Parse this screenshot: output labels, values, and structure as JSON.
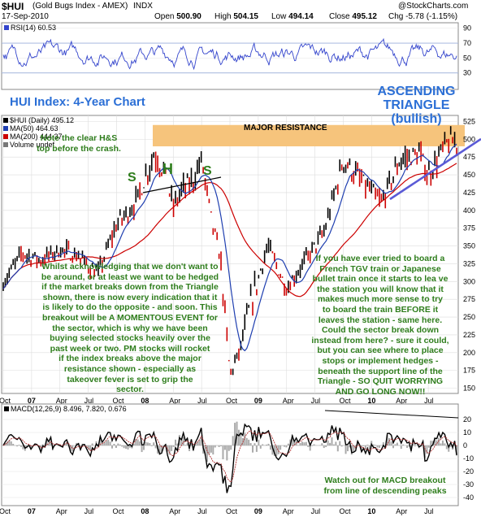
{
  "header": {
    "symbol": "$HUI",
    "symbol_desc": "(Gold Bugs Index - AMEX)",
    "exchange": "INDX",
    "source": "@StockCharts.com",
    "date": "17-Sep-2010",
    "open_label": "Open",
    "open": "500.90",
    "high_label": "High",
    "high": "504.15",
    "low_label": "Low",
    "low": "494.14",
    "close_label": "Close",
    "close": "495.12",
    "chg_label": "Chg",
    "chg": "-5.78 (-1.15%)"
  },
  "rsi_legend": "RSI(14) 60.53",
  "price_legend": {
    "main": "$HUI (Daily) 495.12",
    "ma50": "MA(50) 464.63",
    "ma200": "MA(200) 444.37",
    "volume": "Volume undef"
  },
  "macd_legend": "MACD(12,26,9) 8.496, 7.820, 0.676",
  "title": "HUI Index: 4-Year Chart",
  "annotations": {
    "ascending": "ASCENDING",
    "triangle": "TRIANGLE",
    "bullish": "(bullish)",
    "major_resistance": "MAJOR RESISTANCE",
    "hs_note_1": "Note the clear H&S",
    "hs_note_2": "top before the crash.",
    "hs_s1": "S",
    "hs_h": "H",
    "hs_s2": "S",
    "left_text": [
      "Whilst acknowledging that we don't want to",
      "be around, or at least we want to be hedged",
      "if the market breaks down from the Triangle",
      "shown, there is now every indication that it",
      "is likely to do the opposite - and soon. This",
      "breakout will be A MOMENTOUS EVENT for",
      "the sector, which is why we have been",
      "buying selected stocks heavily over the",
      "past week or two. PM stocks will rocket",
      "if the index breaks above the major",
      "resistance shown - especially as",
      "takeover fever is set to grip the",
      "sector."
    ],
    "right_text": [
      "If you have ever tried to board a",
      "French TGV train or Japanese",
      "bullet train once it starts to lea ve",
      "the station you will know that it",
      "makes much more sense to try",
      "to board the train BEFORE it",
      "leaves the station - same here.",
      "Could the sector break down",
      "instead from here? - sure it could,",
      "but you can see where to place",
      "stops or implement hedges -",
      "beneath the support line of the",
      "Triangle - SO QUIT WORRYING",
      "AND GO LONG NOW!!"
    ],
    "macd_note": [
      "Watch out for MACD breakout",
      "from line of descending peaks"
    ]
  },
  "colors": {
    "price": "#000000",
    "up_bar": "#000000",
    "down_bar": "#cc0000",
    "ma50": "#1f3fb0",
    "ma200": "#cc0000",
    "rsi": "#3344cc",
    "resistance": "#f6c47c",
    "trendline": "#5a5ad6",
    "annotation": "#2e7d1c",
    "title": "#2b6fd6"
  },
  "chart_data": [
    {
      "type": "line",
      "panel": "RSI(14)",
      "y_ticks": [
        30,
        50,
        70,
        90
      ],
      "ylim": [
        10,
        95
      ],
      "reference_lines": [
        30,
        70
      ],
      "last_value": 60.53
    },
    {
      "type": "line",
      "panel": "price",
      "series": [
        {
          "name": "$HUI (Daily)",
          "x": [
            "2006-10",
            "2006-12",
            "2007-02",
            "2007-04",
            "2007-06",
            "2007-08",
            "2007-10",
            "2007-12",
            "2008-02",
            "2008-03",
            "2008-04",
            "2008-05",
            "2008-06",
            "2008-07",
            "2008-08",
            "2008-09",
            "2008-10",
            "2008-11",
            "2008-12",
            "2009-02",
            "2009-04",
            "2009-06",
            "2009-08",
            "2009-10",
            "2009-12",
            "2010-02",
            "2010-04",
            "2010-06",
            "2010-07",
            "2010-09"
          ],
          "values": [
            298,
            340,
            330,
            345,
            335,
            310,
            380,
            410,
            480,
            455,
            405,
            430,
            440,
            470,
            390,
            330,
            170,
            200,
            260,
            350,
            290,
            330,
            370,
            470,
            440,
            410,
            470,
            480,
            450,
            495
          ]
        },
        {
          "name": "MA(50)",
          "last": 464.63
        },
        {
          "name": "MA(200)",
          "last": 444.37
        }
      ],
      "y_ticks": [
        150,
        175,
        200,
        225,
        250,
        275,
        300,
        325,
        350,
        375,
        400,
        425,
        450,
        475,
        500,
        525
      ],
      "ylim": [
        145,
        530
      ],
      "resistance_band": [
        490,
        520
      ],
      "x_labels": [
        "Oct",
        "07",
        "Apr",
        "Jul",
        "Oct",
        "08",
        "Apr",
        "Jul",
        "Oct",
        "09",
        "Apr",
        "Jul",
        "Oct",
        "10",
        "Apr",
        "Jul"
      ]
    },
    {
      "type": "line",
      "panel": "MACD(12,26,9)",
      "macd": 8.496,
      "signal": 7.82,
      "histogram": 0.676,
      "y_ticks": [
        20,
        10,
        0,
        -10,
        -20,
        -30,
        -40
      ],
      "ylim": [
        -45,
        30
      ]
    }
  ]
}
